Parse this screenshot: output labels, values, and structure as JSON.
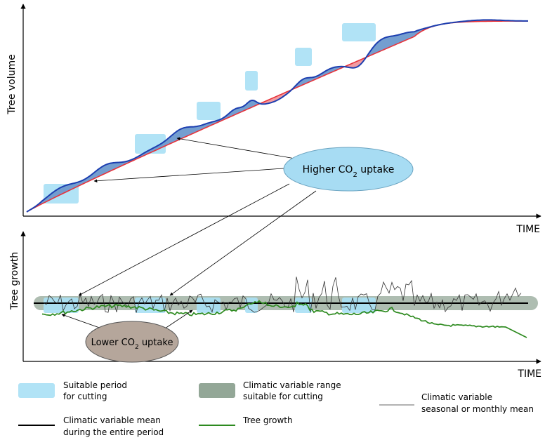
{
  "top_panel": {
    "ylabel": "Tree volume",
    "xlabel": "TIME"
  },
  "bottom_panel": {
    "ylabel": "Tree growth",
    "xlabel": "TIME"
  },
  "callouts": {
    "higher": {
      "text": "Higher CO",
      "sub": "2",
      "tail": " uptake"
    },
    "lower": {
      "text": "Lower CO",
      "sub": "2",
      "tail": " uptake"
    }
  },
  "legend": {
    "suitable_period": [
      "Suitable period",
      "for cutting"
    ],
    "climatic_range": [
      "Climatic variable range",
      "suitable for cutting"
    ],
    "climatic_seasonal": [
      "Climatic variable",
      "seasonal or monthly mean"
    ],
    "climatic_mean": [
      "Climatic variable mean",
      "during the entire period"
    ],
    "tree_growth": [
      "Tree growth"
    ]
  },
  "colors": {
    "cut_period": "#a9e0f5",
    "range_band": "#93a797",
    "volume_line": "#e8333a",
    "volume_fill": "#f08a8f",
    "observed_volume": "#1d3fb0",
    "observed_fill": "#4a9fe0",
    "growth": "#2d8a1f",
    "higher_ellipse": "#a7dcf3",
    "lower_ellipse": "#b5a69b"
  }
}
